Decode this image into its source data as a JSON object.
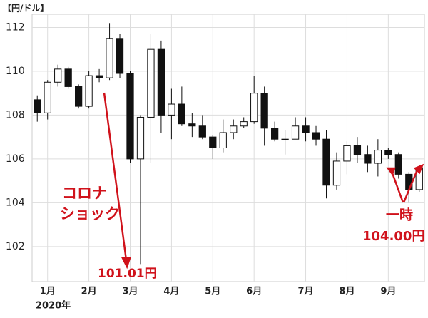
{
  "chart_data": {
    "type": "candlestick",
    "unit_label": "【円/ドル】",
    "year_label": "2020年",
    "categories": [
      null,
      "1月",
      null,
      null,
      null,
      "2月",
      null,
      null,
      null,
      "3月",
      null,
      null,
      null,
      "4月",
      null,
      null,
      null,
      "5月",
      null,
      null,
      null,
      "6月",
      null,
      null,
      null,
      null,
      "7月",
      null,
      null,
      null,
      "8月",
      null,
      null,
      null,
      "9月",
      null,
      null,
      null
    ],
    "open": [
      108.7,
      108.1,
      109.5,
      110.1,
      109.3,
      108.4,
      109.8,
      109.7,
      111.5,
      109.9,
      106.0,
      107.9,
      111.0,
      108.0,
      108.5,
      107.6,
      107.5,
      107.0,
      106.5,
      107.2,
      107.5,
      107.7,
      109.0,
      107.4,
      106.9,
      106.9,
      107.5,
      107.2,
      106.9,
      104.8,
      105.9,
      106.6,
      106.2,
      105.8,
      106.4,
      106.2,
      105.3,
      104.6
    ],
    "high": [
      108.9,
      109.6,
      110.3,
      110.2,
      109.4,
      110.0,
      110.1,
      112.2,
      111.7,
      110.0,
      108.0,
      111.7,
      111.4,
      109.2,
      109.3,
      108.1,
      108.0,
      107.1,
      107.8,
      107.8,
      107.9,
      109.8,
      109.3,
      107.7,
      107.3,
      107.9,
      107.9,
      107.5,
      107.3,
      106.3,
      106.8,
      107.0,
      106.6,
      106.9,
      106.5,
      106.3,
      105.4,
      105.7
    ],
    "low": [
      107.7,
      107.8,
      109.3,
      109.2,
      108.3,
      108.3,
      109.5,
      109.6,
      109.7,
      105.8,
      101.2,
      105.8,
      107.2,
      106.9,
      107.5,
      107.0,
      106.9,
      106.0,
      106.3,
      106.9,
      107.4,
      107.6,
      106.6,
      106.8,
      106.2,
      106.9,
      106.8,
      106.6,
      104.2,
      104.6,
      105.3,
      105.8,
      105.4,
      105.2,
      106.0,
      105.1,
      104.0,
      104.5
    ],
    "close": [
      108.1,
      109.5,
      110.1,
      109.3,
      108.4,
      109.8,
      109.7,
      111.5,
      109.9,
      106.0,
      107.9,
      111.0,
      108.0,
      108.5,
      107.6,
      107.5,
      107.0,
      106.5,
      107.2,
      107.5,
      107.7,
      109.0,
      107.4,
      106.9,
      106.9,
      107.5,
      107.2,
      106.9,
      104.8,
      105.9,
      106.6,
      106.2,
      105.8,
      106.4,
      106.2,
      105.3,
      104.6,
      105.6
    ],
    "ylim": [
      100.4,
      112.6
    ],
    "yticks": [
      102,
      104,
      106,
      108,
      110,
      112
    ],
    "grid": true,
    "up_color": "#ffffff",
    "down_color": "#111111",
    "annotations": [
      {
        "text": "コロナ",
        "color": "#d0121b"
      },
      {
        "text": "ショック",
        "color": "#d0121b"
      },
      {
        "text": "101.01円",
        "color": "#d0121b"
      },
      {
        "text": "一時",
        "color": "#d0121b"
      },
      {
        "text": "104.00円",
        "color": "#d0121b"
      }
    ]
  }
}
